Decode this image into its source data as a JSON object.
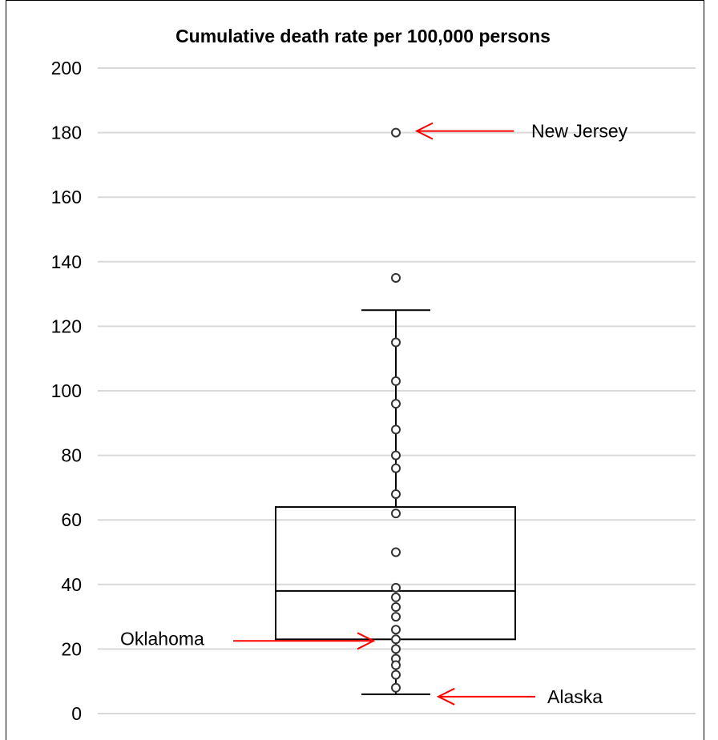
{
  "chart_data": {
    "type": "box",
    "title": "Cumulative death rate per 100,000 persons",
    "ylim": [
      0,
      200
    ],
    "yticks": [
      0,
      20,
      40,
      60,
      80,
      100,
      120,
      140,
      160,
      180,
      200
    ],
    "grid": true,
    "box": {
      "whisker_low": 6,
      "q1": 23,
      "median": 38,
      "q3": 64,
      "whisker_high": 125
    },
    "points": [
      180,
      135,
      115,
      103,
      96,
      88,
      80,
      76,
      68,
      62,
      50,
      39,
      36,
      33,
      30,
      26,
      23,
      20,
      17,
      15,
      12,
      8
    ],
    "annotations": [
      {
        "label": "New Jersey",
        "value": 180,
        "side": "right"
      },
      {
        "label": "Oklahoma",
        "value": 23,
        "side": "left"
      },
      {
        "label": "Alaska",
        "value": 6,
        "side": "right"
      }
    ],
    "colors": {
      "grid": "#d9d9d9",
      "box": "#000000",
      "arrow": "#ff0000",
      "text": "#000000"
    }
  }
}
